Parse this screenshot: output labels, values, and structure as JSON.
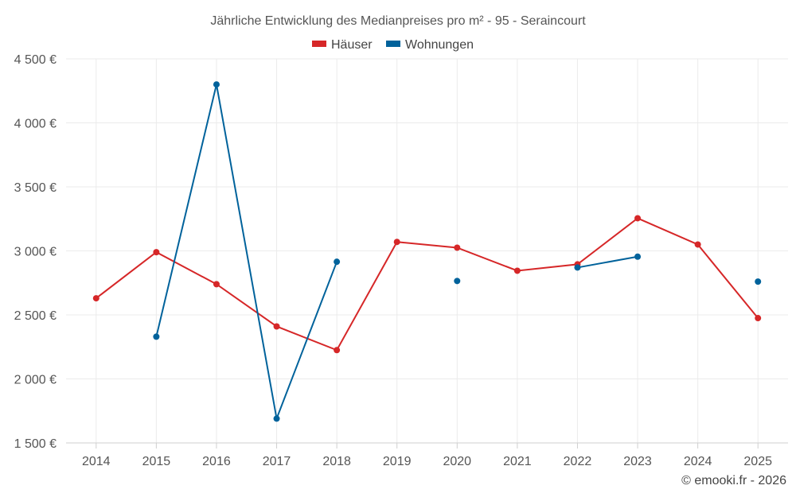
{
  "chart_data": {
    "type": "line",
    "title": "Jährliche Entwicklung des Medianpreises pro m² - 95 - Seraincourt",
    "xlabel": "",
    "ylabel": "",
    "categories": [
      "2014",
      "2015",
      "2016",
      "2017",
      "2018",
      "2019",
      "2020",
      "2021",
      "2022",
      "2023",
      "2024",
      "2025"
    ],
    "ylim": [
      1500,
      4500
    ],
    "yticks": [
      1500,
      2000,
      2500,
      3000,
      3500,
      4000,
      4500
    ],
    "ytick_labels": [
      "1 500 €",
      "2 000 €",
      "2 500 €",
      "3 000 €",
      "3 500 €",
      "4 000 €",
      "4 500 €"
    ],
    "legend_position": "top-center",
    "grid": true,
    "series": [
      {
        "name": "Häuser",
        "color": "#d62728",
        "values": [
          2630,
          2990,
          2740,
          2410,
          2225,
          3070,
          3025,
          2845,
          2895,
          3255,
          3050,
          2475
        ]
      },
      {
        "name": "Wohnungen",
        "color": "#00629b",
        "values": [
          null,
          2330,
          4300,
          1690,
          2915,
          null,
          2765,
          null,
          2870,
          2955,
          null,
          2760
        ]
      }
    ],
    "credit": "© emooki.fr - 2026"
  }
}
